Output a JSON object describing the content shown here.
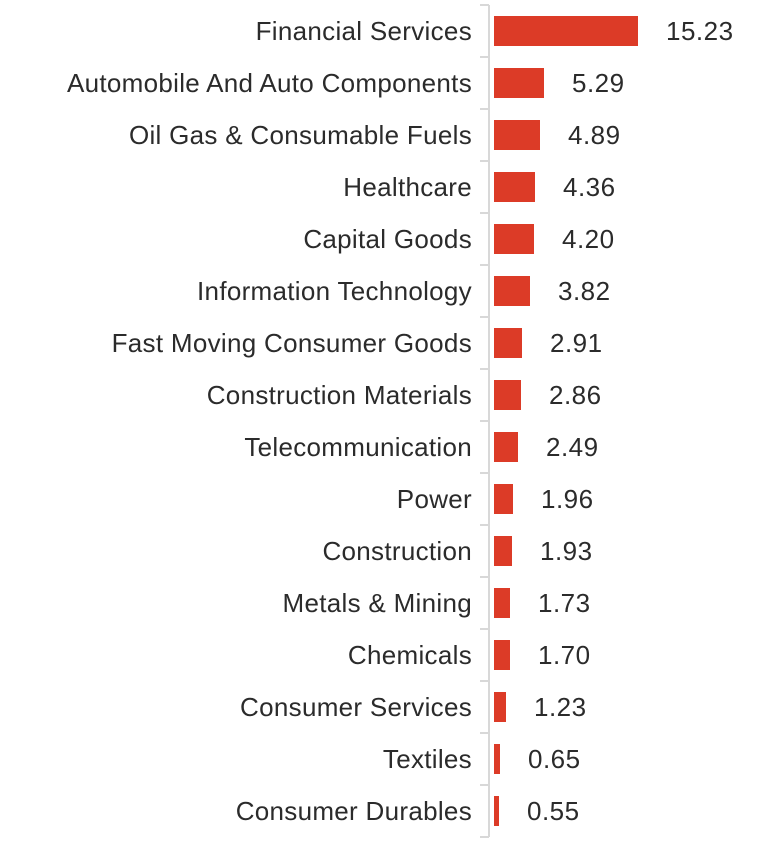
{
  "chart_data": {
    "type": "bar",
    "orientation": "horizontal",
    "title": "",
    "xlabel": "",
    "ylabel": "",
    "categories": [
      "Financial Services",
      "Automobile And Auto Components",
      "Oil Gas & Consumable Fuels",
      "Healthcare",
      "Capital Goods",
      "Information Technology",
      "Fast Moving Consumer Goods",
      "Construction Materials",
      "Telecommunication",
      "Power",
      "Construction",
      "Metals & Mining",
      "Chemicals",
      "Consumer Services",
      "Textiles",
      "Consumer Durables"
    ],
    "values": [
      15.23,
      5.29,
      4.89,
      4.36,
      4.2,
      3.82,
      2.91,
      2.86,
      2.49,
      1.96,
      1.93,
      1.73,
      1.7,
      1.23,
      0.65,
      0.55
    ],
    "value_labels": [
      "15.23",
      "5.29",
      "4.89",
      "4.36",
      "4.20",
      "3.82",
      "2.91",
      "2.86",
      "2.49",
      "1.96",
      "1.93",
      "1.73",
      "1.70",
      "1.23",
      "0.65",
      "0.55"
    ],
    "xlim": [
      0,
      16.1
    ],
    "grid": false,
    "legend": "none",
    "data_labels": "outside-end",
    "colors": {
      "bar": "#dc3b27",
      "axis": "#d8d8d8",
      "text": "#2b2b2b"
    }
  }
}
